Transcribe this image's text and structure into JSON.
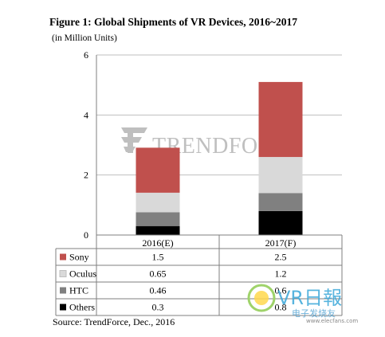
{
  "figure": {
    "title": "Figure 1: Global Shipments of VR Devices, 2016~2017",
    "subtitle": "(in Million Units)",
    "source": "Source: TrendForce, Dec., 2016"
  },
  "watermarks": {
    "trendforce": "TRENDFORCE",
    "vr_site": "VR日報",
    "vr_site_sub": "电子发烧友",
    "vr_site_url": "www.elecfans.com"
  },
  "colors": {
    "Sony": "#c0504d",
    "Oculus": "#d9d9d9",
    "HTC": "#808080",
    "Others": "#000000"
  },
  "chart_data": {
    "type": "bar",
    "stacked": true,
    "categories": [
      "2016(E)",
      "2017(F)"
    ],
    "series": [
      {
        "name": "Others",
        "values": [
          0.3,
          0.8
        ],
        "value_labels": [
          "0.3",
          "0.8"
        ]
      },
      {
        "name": "HTC",
        "values": [
          0.46,
          0.6
        ],
        "value_labels": [
          "0.46",
          "0.6"
        ]
      },
      {
        "name": "Oculus",
        "values": [
          0.65,
          1.2
        ],
        "value_labels": [
          "0.65",
          "1.2"
        ]
      },
      {
        "name": "Sony",
        "values": [
          1.5,
          2.5
        ],
        "value_labels": [
          "1.5",
          "2.5"
        ]
      }
    ],
    "table_order": [
      "Sony",
      "Oculus",
      "HTC",
      "Others"
    ],
    "ylim": [
      0,
      6
    ],
    "yticks": [
      0,
      2,
      4,
      6
    ],
    "grid": true,
    "legend": "data table below chart"
  }
}
